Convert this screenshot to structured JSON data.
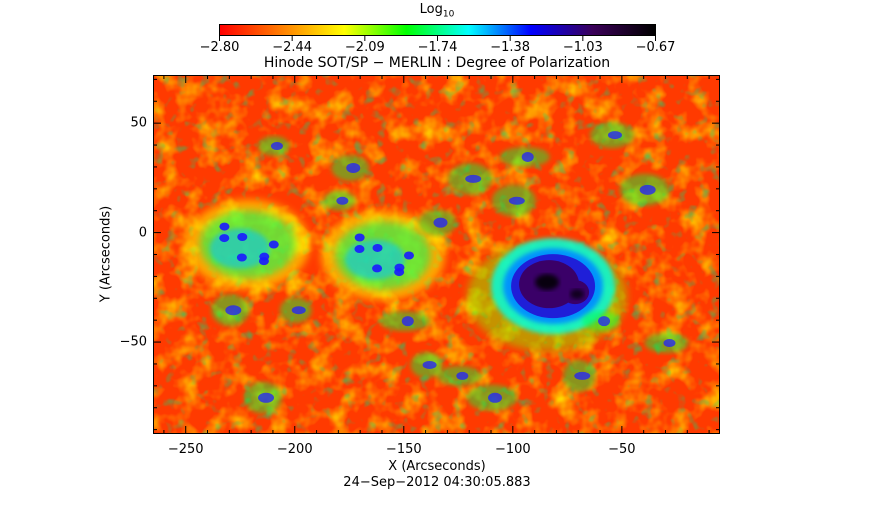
{
  "colorbar": {
    "title_main": "Log",
    "title_sub": "10",
    "tick_labels": [
      "−2.80",
      "−2.44",
      "−2.09",
      "−1.74",
      "−1.38",
      "−1.03",
      "−0.67"
    ],
    "range": [
      -2.8,
      -0.67
    ],
    "colormap": [
      "#ff0000",
      "#ff7f00",
      "#ffff00",
      "#00ff00",
      "#00ffff",
      "#0000ff",
      "#3a0058",
      "#000000"
    ]
  },
  "chart_data": {
    "type": "heatmap",
    "title": "Hinode SOT/SP − MERLIN : Degree of Polarization",
    "xlabel": "X (Arcseconds)",
    "ylabel": "Y (Arcseconds)",
    "xlim": [
      -265,
      -5
    ],
    "ylim": [
      -92,
      72
    ],
    "x_tick_values": [
      -250,
      -200,
      -150,
      -100,
      -50
    ],
    "x_tick_labels": [
      "−250",
      "−200",
      "−150",
      "−100",
      "−50"
    ],
    "y_tick_values": [
      50,
      0,
      -50
    ],
    "y_tick_labels": [
      "50",
      "0",
      "−50"
    ],
    "value_label": "Log10 Degree of Polarization",
    "value_range": [
      -2.8,
      -0.67
    ],
    "features": [
      {
        "name": "sunspot",
        "x": -82,
        "y": -24,
        "value": -0.75
      },
      {
        "name": "plage",
        "x": -222,
        "y": -5,
        "value": -1.3
      },
      {
        "name": "plage",
        "x": -160,
        "y": -10,
        "value": -1.35
      }
    ]
  },
  "timestamp": "24−Sep−2012 04:30:05.883"
}
